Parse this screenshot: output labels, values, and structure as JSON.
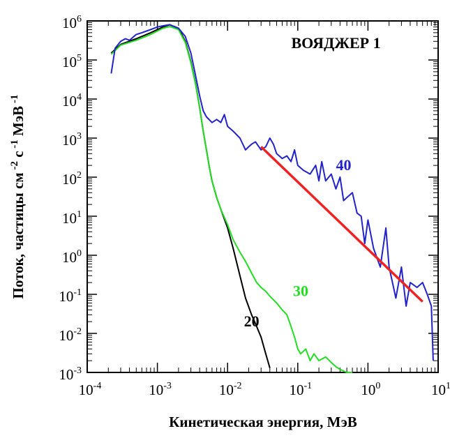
{
  "chart_data": {
    "type": "line",
    "title": "ВОЯДЖЕР 1",
    "xlabel": "Кинетическая энергия, МэВ",
    "ylabel": "Поток, частицы см -2 с -1 МэВ -1",
    "xscale": "log",
    "yscale": "log",
    "xlim": [
      0.0001,
      10
    ],
    "ylim": [
      0.001,
      1000000
    ],
    "grid": false,
    "legend": "none",
    "x_ticks": [
      {
        "base": "10",
        "exp": "-4",
        "value": 0.0001
      },
      {
        "base": "10",
        "exp": "-3",
        "value": 0.001
      },
      {
        "base": "10",
        "exp": "-2",
        "value": 0.01
      },
      {
        "base": "10",
        "exp": "-1",
        "value": 0.1
      },
      {
        "base": "10",
        "exp": "0",
        "value": 1
      },
      {
        "base": "10",
        "exp": "1",
        "value": 10
      }
    ],
    "y_ticks": [
      {
        "base": "10",
        "exp": "-3",
        "value": 0.001
      },
      {
        "base": "10",
        "exp": "-2",
        "value": 0.01
      },
      {
        "base": "10",
        "exp": "-1",
        "value": 0.1
      },
      {
        "base": "10",
        "exp": "0",
        "value": 1
      },
      {
        "base": "10",
        "exp": "1",
        "value": 10
      },
      {
        "base": "10",
        "exp": "2",
        "value": 100
      },
      {
        "base": "10",
        "exp": "3",
        "value": 1000
      },
      {
        "base": "10",
        "exp": "4",
        "value": 10000
      },
      {
        "base": "10",
        "exp": "5",
        "value": 100000
      },
      {
        "base": "10",
        "exp": "6",
        "value": 1000000
      }
    ],
    "series": [
      {
        "name": "20",
        "color": "#000000",
        "x": [
          0.00022,
          0.0003,
          0.0005,
          0.0008,
          0.0012,
          0.0015,
          0.002,
          0.0025,
          0.003,
          0.0035,
          0.004,
          0.0045,
          0.005,
          0.0055,
          0.006,
          0.007,
          0.008,
          0.01,
          0.012,
          0.015,
          0.018,
          0.022,
          0.026,
          0.03,
          0.035,
          0.04
        ],
        "y": [
          150000,
          250000,
          350000,
          500000,
          700000,
          800000,
          650000,
          300000,
          90000,
          25000,
          6000,
          1500,
          500,
          180,
          80,
          30,
          15,
          5,
          1.5,
          0.3,
          0.08,
          0.03,
          0.015,
          0.008,
          0.003,
          0.0013
        ]
      },
      {
        "name": "30",
        "color": "#22dd22",
        "x": [
          0.00022,
          0.0003,
          0.0005,
          0.0008,
          0.0012,
          0.0015,
          0.002,
          0.0025,
          0.003,
          0.0035,
          0.004,
          0.0045,
          0.005,
          0.0055,
          0.006,
          0.007,
          0.008,
          0.01,
          0.012,
          0.015,
          0.018,
          0.022,
          0.026,
          0.03,
          0.035,
          0.04,
          0.05,
          0.06,
          0.07,
          0.08,
          0.09,
          0.1,
          0.11,
          0.13,
          0.15,
          0.17,
          0.2,
          0.25,
          0.3,
          0.35,
          0.4,
          0.5,
          0.6
        ],
        "y": [
          140000,
          240000,
          320000,
          450000,
          650000,
          720000,
          600000,
          280000,
          85000,
          24000,
          6000,
          1500,
          500,
          180,
          80,
          30,
          15,
          6,
          2.5,
          1.2,
          0.7,
          0.35,
          0.2,
          0.15,
          0.12,
          0.09,
          0.06,
          0.04,
          0.03,
          0.015,
          0.008,
          0.004,
          0.003,
          0.004,
          0.002,
          0.003,
          0.002,
          0.0025,
          0.0018,
          0.0014,
          0.0012,
          0.001,
          0.001
        ]
      },
      {
        "name": "40",
        "color": "#2222cc",
        "x": [
          0.00022,
          0.00025,
          0.0003,
          0.00035,
          0.0004,
          0.0005,
          0.0006,
          0.0007,
          0.0008,
          0.001,
          0.0012,
          0.0015,
          0.0018,
          0.002,
          0.0025,
          0.003,
          0.0035,
          0.004,
          0.0045,
          0.005,
          0.006,
          0.007,
          0.008,
          0.009,
          0.01,
          0.012,
          0.015,
          0.018,
          0.02,
          0.022,
          0.025,
          0.03,
          0.035,
          0.04,
          0.045,
          0.05,
          0.06,
          0.07,
          0.08,
          0.09,
          0.1,
          0.12,
          0.15,
          0.18,
          0.2,
          0.22,
          0.25,
          0.3,
          0.35,
          0.4,
          0.45,
          0.5,
          0.6,
          0.7,
          0.8,
          0.9,
          1.0,
          1.2,
          1.5,
          1.8,
          2.0,
          2.5,
          3.0,
          3.5,
          4.0,
          5.0,
          6.0,
          7.0,
          8.0,
          8.5
        ],
        "y": [
          45000,
          200000,
          300000,
          350000,
          320000,
          450000,
          500000,
          550000,
          600000,
          700000,
          750000,
          800000,
          700000,
          650000,
          400000,
          150000,
          40000,
          12000,
          5000,
          3500,
          2500,
          3000,
          2500,
          4000,
          2000,
          1500,
          1000,
          500,
          600,
          700,
          800,
          500,
          600,
          1000,
          700,
          400,
          300,
          350,
          250,
          500,
          200,
          150,
          120,
          200,
          80,
          250,
          80,
          120,
          50,
          100,
          25,
          30,
          40,
          12,
          10,
          2,
          8,
          1.5,
          0.5,
          5,
          0.5,
          0.08,
          0.5,
          0.05,
          0.2,
          0.15,
          0.2,
          0.1,
          0.05,
          0.002
        ]
      },
      {
        "name": "fit",
        "color": "#ee2222",
        "x": [
          0.03,
          6.0
        ],
        "y": [
          600,
          0.065
        ]
      }
    ],
    "annotations": [
      {
        "text": "ВОЯДЖЕР 1",
        "x": 0.35,
        "y": 200000,
        "color": "#000000"
      },
      {
        "text": "40",
        "x": 0.45,
        "y": 150,
        "color": "#2222cc"
      },
      {
        "text": "30",
        "x": 0.11,
        "y": 0.09,
        "color": "#22dd22"
      },
      {
        "text": "20",
        "x": 0.022,
        "y": 0.015,
        "color": "#000000"
      }
    ]
  }
}
